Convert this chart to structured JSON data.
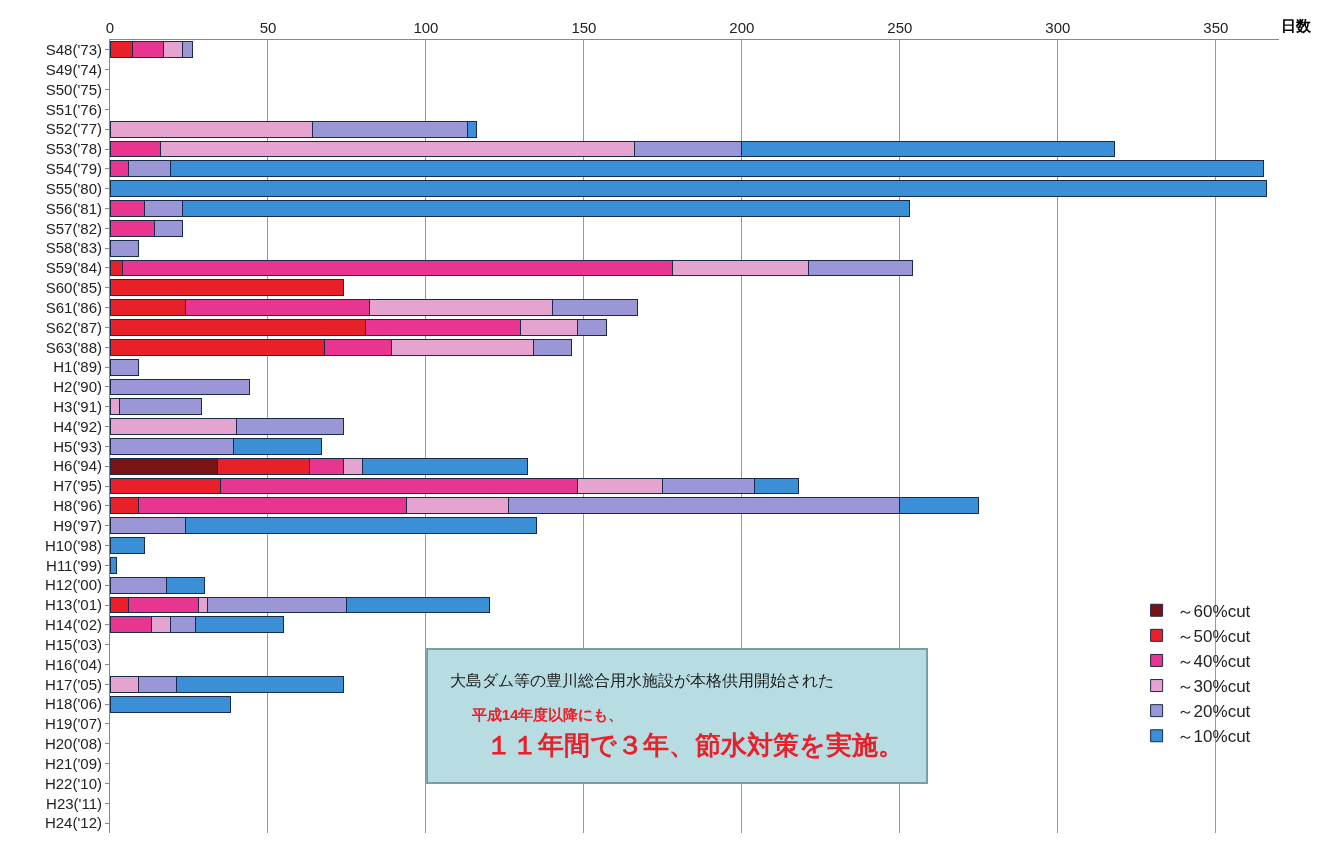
{
  "chart_data": {
    "type": "bar",
    "orientation": "horizontal",
    "stacked": true,
    "xlabel": "日数",
    "categories": [
      "S48('73)",
      "S49('74)",
      "S50('75)",
      "S51('76)",
      "S52('77)",
      "S53('78)",
      "S54('79)",
      "S55('80)",
      "S56('81)",
      "S57('82)",
      "S58('83)",
      "S59('84)",
      "S60('85)",
      "S61('86)",
      "S62('87)",
      "S63('88)",
      "H1('89)",
      "H2('90)",
      "H3('91)",
      "H4('92)",
      "H5('93)",
      "H6('94)",
      "H7('95)",
      "H8('96)",
      "H9('97)",
      "H10('98)",
      "H11('99)",
      "H12('00)",
      "H13('01)",
      "H14('02)",
      "H15('03)",
      "H16('04)",
      "H17('05)",
      "H18('06)",
      "H19('07)",
      "H20('08)",
      "H21('09)",
      "H22('10)",
      "H23('11)",
      "H24('12)"
    ],
    "series": [
      {
        "name": "～60%cut",
        "color": "#7a1414",
        "values": [
          null,
          null,
          null,
          null,
          null,
          null,
          null,
          null,
          null,
          null,
          null,
          null,
          null,
          null,
          null,
          null,
          null,
          null,
          null,
          null,
          null,
          34,
          null,
          null,
          null,
          null,
          null,
          null,
          null,
          null,
          null,
          null,
          null,
          null,
          null,
          null,
          null,
          null,
          null,
          null
        ]
      },
      {
        "name": "～50%cut",
        "color": "#e8202a",
        "values": [
          7,
          null,
          null,
          null,
          null,
          null,
          null,
          null,
          null,
          null,
          null,
          4,
          74,
          24,
          81,
          68,
          null,
          null,
          null,
          null,
          null,
          29,
          35,
          9,
          null,
          null,
          null,
          null,
          6,
          null,
          null,
          null,
          null,
          null,
          null,
          null,
          null,
          null,
          null,
          null
        ]
      },
      {
        "name": "～40%cut",
        "color": "#e8358f",
        "values": [
          10,
          null,
          null,
          null,
          null,
          16,
          6,
          null,
          11,
          14,
          null,
          174,
          null,
          58,
          49,
          21,
          null,
          null,
          null,
          null,
          null,
          11,
          113,
          85,
          null,
          null,
          null,
          null,
          22,
          13,
          null,
          null,
          null,
          null,
          null,
          null,
          null,
          null,
          null,
          null
        ]
      },
      {
        "name": "～30%cut",
        "color": "#e5a3cf",
        "values": [
          6,
          null,
          null,
          null,
          64,
          150,
          null,
          null,
          null,
          null,
          null,
          43,
          null,
          58,
          18,
          45,
          null,
          null,
          3,
          40,
          null,
          6,
          27,
          32,
          null,
          null,
          null,
          null,
          3,
          6,
          null,
          null,
          9,
          null,
          null,
          null,
          null,
          null,
          null,
          null
        ]
      },
      {
        "name": "～20%cut",
        "color": "#9b97d6",
        "values": [
          3,
          null,
          null,
          null,
          49,
          34,
          13,
          null,
          12,
          9,
          9,
          33,
          null,
          27,
          9,
          12,
          9,
          44,
          26,
          34,
          39,
          null,
          29,
          124,
          24,
          null,
          null,
          18,
          44,
          8,
          null,
          null,
          12,
          null,
          null,
          null,
          null,
          null,
          null,
          null
        ]
      },
      {
        "name": "～10%cut",
        "color": "#3a8fd6",
        "values": [
          null,
          null,
          null,
          null,
          3,
          118,
          346,
          366,
          230,
          null,
          null,
          null,
          null,
          null,
          null,
          null,
          null,
          null,
          null,
          null,
          28,
          52,
          14,
          25,
          111,
          11,
          2,
          12,
          45,
          28,
          null,
          null,
          53,
          38,
          null,
          null,
          null,
          null,
          null,
          null
        ]
      }
    ],
    "xlim": [
      0,
      370
    ],
    "xticks": [
      0,
      50,
      100,
      150,
      200,
      250,
      300,
      350
    ],
    "grid": "x",
    "legend": "bottom right",
    "annotations": [
      "大島ダム等の豊川総合用水施設が本格供用開始された",
      "平成14年度以降にも、",
      "１１年間で３年、節水対策を実施。"
    ]
  }
}
